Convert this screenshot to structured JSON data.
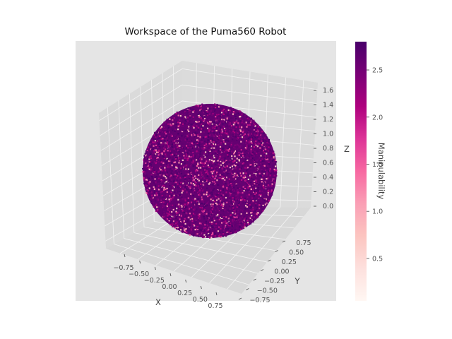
{
  "chart_data": {
    "type": "scatter",
    "projection": "3d",
    "title": "Workspace of the Puma560 Robot",
    "xlabel": "X",
    "ylabel": "Y",
    "zlabel": "Z",
    "x_ticks": [
      "−0.75",
      "−0.50",
      "−0.25",
      "0.00",
      "0.25",
      "0.50",
      "0.75"
    ],
    "y_ticks": [
      "−0.75",
      "−0.50",
      "−0.25",
      "0.00",
      "0.25",
      "0.50",
      "0.75"
    ],
    "z_ticks": [
      "0.0",
      "0.2",
      "0.4",
      "0.6",
      "0.8",
      "1.0",
      "1.2",
      "1.4",
      "1.6"
    ],
    "xlim": [
      -0.95,
      0.95
    ],
    "ylim": [
      -0.95,
      0.95
    ],
    "zlim": [
      -0.1,
      1.7
    ],
    "sphere": {
      "center": [
        0.0,
        0.0,
        0.66
      ],
      "radius": 0.86
    },
    "grid": true,
    "background": "#e5e5e5",
    "colormap": "RdPu",
    "colorbar": {
      "label": "Manipulability",
      "ticks": [
        "0.5",
        "1.0",
        "1.5",
        "2.0",
        "2.5"
      ],
      "range": [
        0.05,
        2.8
      ],
      "colors": [
        "#fff7f3",
        "#fde0dd",
        "#fcc5c0",
        "#fa9fb5",
        "#f768a1",
        "#dd3497",
        "#ae017e",
        "#7a0177",
        "#49006a"
      ]
    },
    "manipulability_distribution": "mostly 2.3 to 2.8 with sparse lower values"
  }
}
